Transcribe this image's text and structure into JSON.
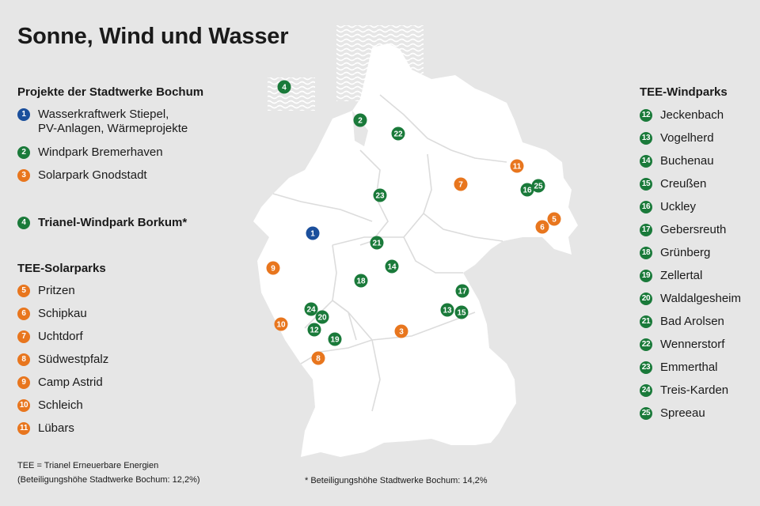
{
  "title": "Sonne, Wind und Wasser",
  "colors": {
    "blue": "#1b4f9c",
    "green": "#1a7a3a",
    "orange": "#e8761e",
    "land": "#ffffff",
    "background": "#e6e6e6"
  },
  "stadtwerke": {
    "heading": "Projekte der Stadtwerke Bochum",
    "items": [
      {
        "num": "1",
        "label": "Wasserkraftwerk Stiepel,\nPV-Anlagen, Wärmeprojekte",
        "color": "blue"
      },
      {
        "num": "2",
        "label": "Windpark Bremerhaven",
        "color": "green"
      },
      {
        "num": "3",
        "label": "Solarpark Gnodstadt",
        "color": "orange"
      }
    ]
  },
  "trianel": {
    "num": "4",
    "label": "Trianel-Windpark Borkum*",
    "color": "green"
  },
  "solar": {
    "heading": "TEE-Solarparks",
    "items": [
      {
        "num": "5",
        "label": "Pritzen"
      },
      {
        "num": "6",
        "label": "Schipkau"
      },
      {
        "num": "7",
        "label": "Uchtdorf"
      },
      {
        "num": "8",
        "label": "Südwestpfalz"
      },
      {
        "num": "9",
        "label": "Camp Astrid"
      },
      {
        "num": "10",
        "label": "Schleich"
      },
      {
        "num": "11",
        "label": "Lübars"
      }
    ]
  },
  "wind": {
    "heading": "TEE-Windparks",
    "items": [
      {
        "num": "12",
        "label": "Jeckenbach"
      },
      {
        "num": "13",
        "label": "Vogelherd"
      },
      {
        "num": "14",
        "label": "Buchenau"
      },
      {
        "num": "15",
        "label": "Creußen"
      },
      {
        "num": "16",
        "label": "Uckley"
      },
      {
        "num": "17",
        "label": "Gebersreuth"
      },
      {
        "num": "18",
        "label": "Grünberg"
      },
      {
        "num": "19",
        "label": "Zellertal"
      },
      {
        "num": "20",
        "label": "Waldalgesheim"
      },
      {
        "num": "21",
        "label": "Bad Arolsen"
      },
      {
        "num": "22",
        "label": "Wennerstorf"
      },
      {
        "num": "23",
        "label": "Emmerthal"
      },
      {
        "num": "24",
        "label": "Treis-Karden"
      },
      {
        "num": "25",
        "label": "Spreeau"
      }
    ]
  },
  "footnotes": {
    "tee_line1": "TEE = Trianel Erneuerbare Energien",
    "tee_line2": "(Beteiligungshöhe Stadtwerke Bochum: 12,2%)",
    "star": "* Beteiligungshöhe Stadtwerke Bochum: 14,2%"
  },
  "map_markers": [
    {
      "num": "4",
      "color": "green"
    },
    {
      "num": "2",
      "color": "green"
    },
    {
      "num": "22",
      "color": "green"
    },
    {
      "num": "11",
      "color": "orange"
    },
    {
      "num": "7",
      "color": "orange"
    },
    {
      "num": "16",
      "color": "green"
    },
    {
      "num": "25",
      "color": "green"
    },
    {
      "num": "23",
      "color": "green"
    },
    {
      "num": "5",
      "color": "orange"
    },
    {
      "num": "6",
      "color": "orange"
    },
    {
      "num": "1",
      "color": "blue"
    },
    {
      "num": "21",
      "color": "green"
    },
    {
      "num": "9",
      "color": "orange"
    },
    {
      "num": "14",
      "color": "green"
    },
    {
      "num": "18",
      "color": "green"
    },
    {
      "num": "17",
      "color": "green"
    },
    {
      "num": "24",
      "color": "green"
    },
    {
      "num": "20",
      "color": "green"
    },
    {
      "num": "13",
      "color": "green"
    },
    {
      "num": "15",
      "color": "green"
    },
    {
      "num": "10",
      "color": "orange"
    },
    {
      "num": "12",
      "color": "green"
    },
    {
      "num": "3",
      "color": "orange"
    },
    {
      "num": "19",
      "color": "green"
    },
    {
      "num": "8",
      "color": "orange"
    }
  ]
}
